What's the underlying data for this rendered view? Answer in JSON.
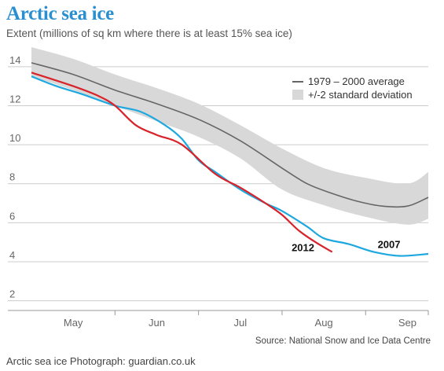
{
  "caption": "Arctic sea ice Photograph: guardian.co.uk",
  "chart_data": {
    "type": "line",
    "title": "Arctic sea ice",
    "subtitle": "Extent (millions of sq km where there is at least 15% sea ice)",
    "source": "Source: National Snow and Ice Data Centre",
    "ylim": [
      1.5,
      15
    ],
    "yticks": [
      2,
      4,
      6,
      8,
      10,
      12,
      14
    ],
    "xlim": [
      0,
      4.75
    ],
    "month_labels": [
      {
        "x": 0.5,
        "label": "May"
      },
      {
        "x": 1.5,
        "label": "Jun"
      },
      {
        "x": 2.5,
        "label": "Jul"
      },
      {
        "x": 3.5,
        "label": "Aug"
      },
      {
        "x": 4.5,
        "label": "Sep"
      }
    ],
    "month_boundaries": [
      1,
      2,
      3,
      4
    ],
    "legend": {
      "average": "1979 – 2000 average",
      "band": "+/-2 standard deviation",
      "position": "top-right"
    },
    "colors": {
      "average": "#666666",
      "band": "#d8d8d8",
      "y2012": "#d8232a",
      "y2007": "#1ea8e0",
      "grid": "#cccccc"
    },
    "series": [
      {
        "name": "1979 – 2000 average",
        "x": [
          0,
          0.5,
          1,
          1.5,
          2,
          2.5,
          3,
          3.3,
          3.6,
          3.9,
          4.2,
          4.5,
          4.75
        ],
        "values": [
          14.2,
          13.6,
          12.8,
          12.1,
          11.3,
          10.2,
          8.8,
          8.0,
          7.5,
          7.1,
          6.85,
          6.85,
          7.3
        ]
      },
      {
        "name": "+/-2 standard deviation upper",
        "x": [
          0,
          0.5,
          1,
          1.5,
          2,
          2.5,
          3,
          3.5,
          4,
          4.5,
          4.75
        ],
        "values": [
          15.0,
          14.4,
          13.6,
          12.9,
          12.1,
          11.0,
          9.8,
          8.8,
          8.3,
          8.0,
          8.6
        ]
      },
      {
        "name": "+/-2 standard deviation lower",
        "x": [
          0,
          0.5,
          1,
          1.5,
          2,
          2.5,
          3,
          3.5,
          4,
          4.5,
          4.75
        ],
        "values": [
          13.5,
          12.8,
          12.0,
          11.2,
          10.4,
          9.3,
          7.7,
          6.9,
          6.3,
          5.9,
          6.2
        ]
      },
      {
        "name": "2012",
        "x": [
          0,
          0.5,
          0.8,
          1,
          1.25,
          1.5,
          1.8,
          2.2,
          2.5,
          2.8,
          3.0,
          3.2,
          3.4,
          3.6
        ],
        "values": [
          13.7,
          13.0,
          12.5,
          12.0,
          11.0,
          10.5,
          10.0,
          8.5,
          7.8,
          7.0,
          6.4,
          5.6,
          5.0,
          4.5
        ]
      },
      {
        "name": "2007",
        "x": [
          0,
          0.3,
          0.6,
          1.0,
          1.3,
          1.6,
          1.8,
          2.0,
          2.2,
          2.5,
          2.8,
          3.0,
          3.3,
          3.5,
          3.8,
          4.1,
          4.4,
          4.75
        ],
        "values": [
          13.5,
          13.0,
          12.6,
          12.0,
          11.7,
          11.0,
          10.3,
          9.2,
          8.6,
          7.7,
          7.0,
          6.6,
          5.8,
          5.2,
          4.9,
          4.5,
          4.3,
          4.4
        ]
      }
    ],
    "annotations": [
      {
        "label": "2012",
        "x": 3.25,
        "y": 4.55
      },
      {
        "label": "2007",
        "x": 4.28,
        "y": 4.7
      }
    ]
  }
}
